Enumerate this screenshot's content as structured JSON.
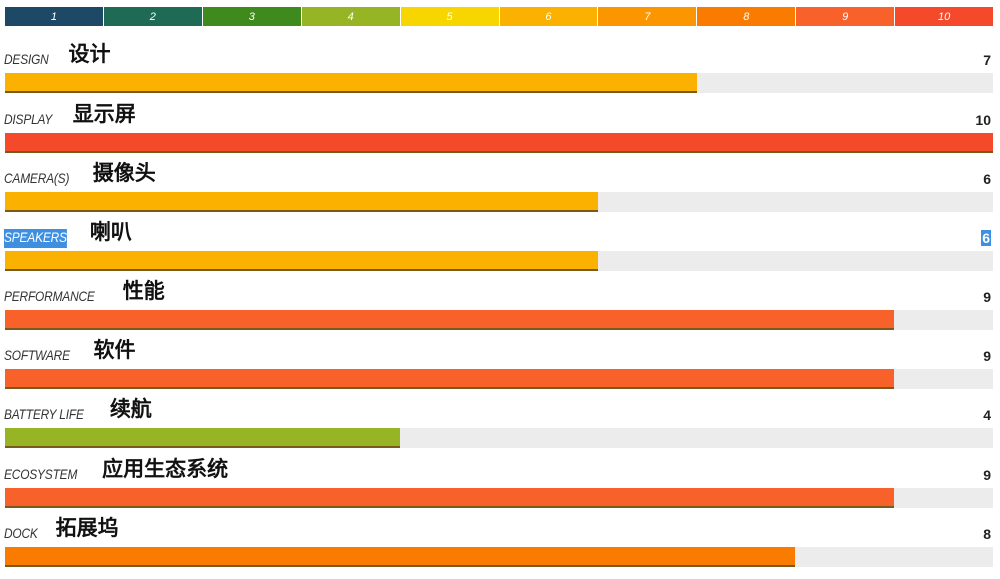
{
  "chart_data": {
    "type": "bar",
    "orientation": "horizontal",
    "scale": {
      "labels": [
        "1",
        "2",
        "3",
        "4",
        "5",
        "6",
        "7",
        "8",
        "9",
        "10"
      ],
      "colors": [
        "#1d4866",
        "#1f6a55",
        "#3e8a1c",
        "#97b424",
        "#f7d600",
        "#fbb100",
        "#fb9500",
        "#f97c00",
        "#f8612a",
        "#f4492a"
      ]
    },
    "xlim": [
      0,
      10
    ],
    "categories": [
      {
        "en": "DESIGN",
        "cn": "设计",
        "score_label": "7"
      },
      {
        "en": "DISPLAY",
        "cn": "显示屏",
        "score_label": "10"
      },
      {
        "en": "CAMERA(S)",
        "cn": "摄像头",
        "score_label": "6"
      },
      {
        "en": "SPEAKERS",
        "cn": "喇叭",
        "score_label": "6"
      },
      {
        "en": "PERFORMANCE",
        "cn": "性能",
        "score_label": "9"
      },
      {
        "en": "SOFTWARE",
        "cn": "软件",
        "score_label": "9"
      },
      {
        "en": "BATTERY LIFE",
        "cn": "续航",
        "score_label": "4"
      },
      {
        "en": "ECOSYSTEM",
        "cn": "应用生态系统",
        "score_label": "9"
      },
      {
        "en": "DOCK",
        "cn": "拓展坞",
        "score_label": "8"
      }
    ],
    "values": [
      7,
      10,
      6,
      6,
      9,
      9,
      4,
      9,
      8
    ],
    "bar_colors": [
      "#fbb100",
      "#f4492a",
      "#fbb100",
      "#fbb100",
      "#f8612a",
      "#f8612a",
      "#97b424",
      "#f8612a",
      "#f97c00"
    ],
    "track_color": "#ececec",
    "selected_row": 3
  }
}
